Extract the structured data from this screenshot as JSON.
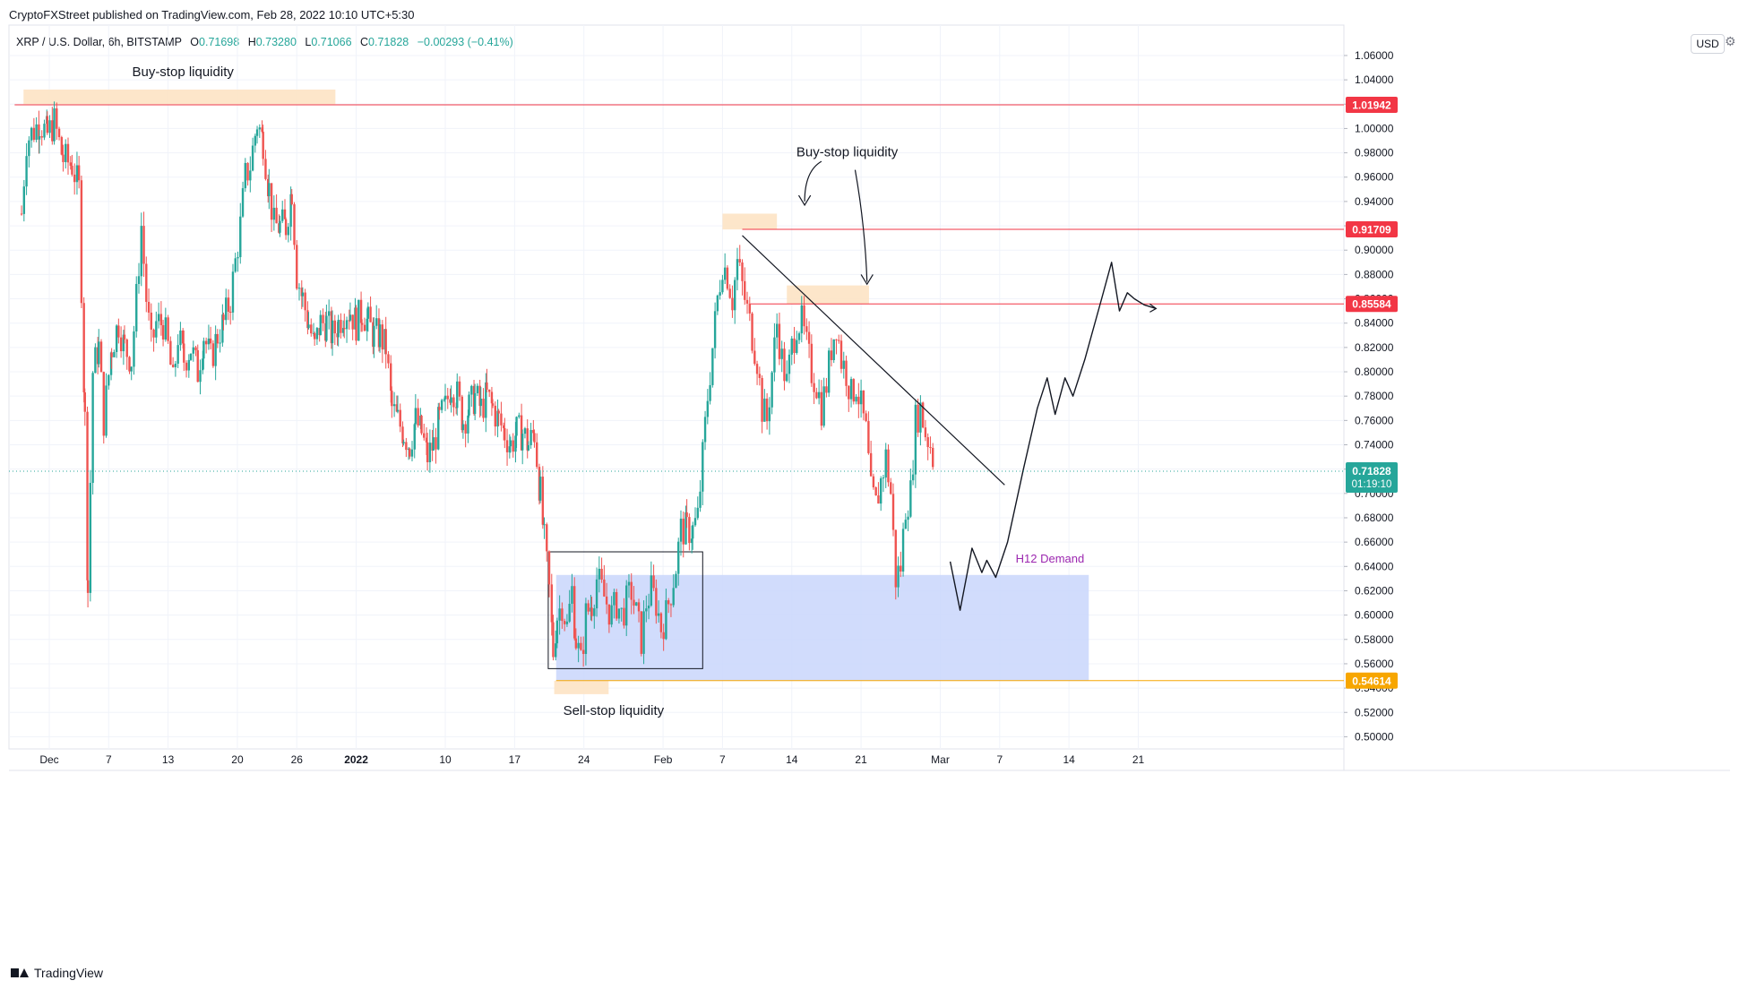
{
  "header": {
    "published": "CryptoFXStreet published on TradingView.com, Feb 28, 2022 10:10 UTC+5:30",
    "symbol": "XRP / U.S. Dollar, 6h, BITSTAMP",
    "open_label": "O",
    "open": "0.71698",
    "high_label": "H",
    "high": "0.73280",
    "low_label": "L",
    "low": "0.71066",
    "close_label": "C",
    "close": "0.71828",
    "change": "−0.00293 (−0.41%)",
    "currency": "USD"
  },
  "footer": {
    "brand": "TradingView"
  },
  "colors": {
    "up": "#26a69a",
    "down": "#ef5350",
    "liquidity_zone": "#fde3c4",
    "demand_zone": "#c9d6fb",
    "resistance": "#f23645",
    "support": "#f7a600",
    "demand_label": "#9c27b0"
  },
  "chart_data": {
    "type": "candlestick",
    "timeframe": "6h",
    "ylim": [
      0.49,
      1.085
    ],
    "y_ticks": [
      "1.06000",
      "1.04000",
      "1.02000",
      "1.00000",
      "0.98000",
      "0.96000",
      "0.94000",
      "0.92000",
      "0.90000",
      "0.88000",
      "0.86000",
      "0.84000",
      "0.82000",
      "0.80000",
      "0.78000",
      "0.76000",
      "0.74000",
      "0.72000",
      "0.70000",
      "0.68000",
      "0.66000",
      "0.64000",
      "0.62000",
      "0.60000",
      "0.58000",
      "0.56000",
      "0.54000",
      "0.52000",
      "0.50000"
    ],
    "y_tick_values": [
      1.06,
      1.04,
      1.02,
      1.0,
      0.98,
      0.96,
      0.94,
      0.92,
      0.9,
      0.88,
      0.86,
      0.84,
      0.82,
      0.8,
      0.78,
      0.76,
      0.74,
      0.72,
      0.7,
      0.68,
      0.66,
      0.64,
      0.62,
      0.6,
      0.58,
      0.56,
      0.54,
      0.52,
      0.5
    ],
    "x_labels": [
      {
        "day": 0,
        "label": "Dec"
      },
      {
        "day": 6,
        "label": "7"
      },
      {
        "day": 12,
        "label": "13"
      },
      {
        "day": 19,
        "label": "20"
      },
      {
        "day": 25,
        "label": "26"
      },
      {
        "day": 31,
        "label": "2022"
      },
      {
        "day": 40,
        "label": "10"
      },
      {
        "day": 47,
        "label": "17"
      },
      {
        "day": 54,
        "label": "24"
      },
      {
        "day": 62,
        "label": "Feb"
      },
      {
        "day": 68,
        "label": "7"
      },
      {
        "day": 75,
        "label": "14"
      },
      {
        "day": 82,
        "label": "21"
      },
      {
        "day": 90,
        "label": "Mar"
      },
      {
        "day": 96,
        "label": "7"
      },
      {
        "day": 103,
        "label": "14"
      },
      {
        "day": 110,
        "label": "21"
      }
    ],
    "price_path": [
      [
        -2.8,
        0.93
      ],
      [
        -2.3,
        0.99
      ],
      [
        -1.0,
        1.005
      ],
      [
        -0.2,
        0.995
      ],
      [
        0.5,
        1.005
      ],
      [
        1.4,
        0.975
      ],
      [
        2.3,
        0.97
      ],
      [
        3.0,
        0.95
      ],
      [
        3.6,
        0.76
      ],
      [
        3.9,
        0.62
      ],
      [
        4.4,
        0.8
      ],
      [
        5.0,
        0.82
      ],
      [
        5.5,
        0.76
      ],
      [
        6.3,
        0.82
      ],
      [
        7.0,
        0.84
      ],
      [
        7.6,
        0.82
      ],
      [
        8.3,
        0.81
      ],
      [
        8.8,
        0.86
      ],
      [
        9.3,
        0.92
      ],
      [
        9.8,
        0.86
      ],
      [
        10.3,
        0.82
      ],
      [
        10.8,
        0.84
      ],
      [
        11.5,
        0.84
      ],
      [
        12.0,
        0.82
      ],
      [
        12.5,
        0.79
      ],
      [
        13.0,
        0.83
      ],
      [
        13.6,
        0.81
      ],
      [
        14.3,
        0.82
      ],
      [
        15.0,
        0.8
      ],
      [
        15.6,
        0.83
      ],
      [
        16.3,
        0.81
      ],
      [
        17.0,
        0.83
      ],
      [
        17.6,
        0.84
      ],
      [
        18.3,
        0.86
      ],
      [
        18.8,
        0.89
      ],
      [
        19.3,
        0.92
      ],
      [
        19.8,
        0.96
      ],
      [
        20.3,
        0.97
      ],
      [
        21.0,
        1.005
      ],
      [
        21.6,
        0.99
      ],
      [
        22.2,
        0.95
      ],
      [
        22.7,
        0.92
      ],
      [
        23.3,
        0.92
      ],
      [
        23.9,
        0.92
      ],
      [
        24.5,
        0.95
      ],
      [
        25.0,
        0.88
      ],
      [
        25.6,
        0.86
      ],
      [
        26.2,
        0.84
      ],
      [
        26.8,
        0.82
      ],
      [
        27.4,
        0.84
      ],
      [
        28.0,
        0.84
      ],
      [
        28.6,
        0.83
      ],
      [
        29.2,
        0.84
      ],
      [
        29.8,
        0.85
      ],
      [
        30.4,
        0.85
      ],
      [
        31.0,
        0.84
      ],
      [
        31.6,
        0.85
      ],
      [
        32.2,
        0.84
      ],
      [
        32.8,
        0.83
      ],
      [
        33.4,
        0.83
      ],
      [
        34.0,
        0.82
      ],
      [
        34.6,
        0.77
      ],
      [
        35.2,
        0.76
      ],
      [
        35.8,
        0.75
      ],
      [
        36.4,
        0.74
      ],
      [
        37.0,
        0.76
      ],
      [
        37.6,
        0.75
      ],
      [
        38.2,
        0.73
      ],
      [
        38.8,
        0.74
      ],
      [
        39.4,
        0.76
      ],
      [
        40.0,
        0.77
      ],
      [
        40.6,
        0.79
      ],
      [
        41.2,
        0.78
      ],
      [
        41.8,
        0.76
      ],
      [
        42.4,
        0.77
      ],
      [
        43.0,
        0.78
      ],
      [
        43.6,
        0.77
      ],
      [
        44.2,
        0.78
      ],
      [
        44.8,
        0.77
      ],
      [
        45.4,
        0.76
      ],
      [
        46.0,
        0.75
      ],
      [
        46.6,
        0.74
      ],
      [
        47.2,
        0.75
      ],
      [
        47.8,
        0.75
      ],
      [
        48.4,
        0.74
      ],
      [
        49.0,
        0.75
      ],
      [
        49.6,
        0.7
      ],
      [
        50.0,
        0.66
      ],
      [
        50.5,
        0.62
      ],
      [
        50.9,
        0.57
      ],
      [
        51.3,
        0.6
      ],
      [
        51.8,
        0.61
      ],
      [
        52.3,
        0.59
      ],
      [
        52.8,
        0.62
      ],
      [
        53.2,
        0.58
      ],
      [
        53.7,
        0.56
      ],
      [
        54.2,
        0.6
      ],
      [
        54.8,
        0.61
      ],
      [
        55.3,
        0.63
      ],
      [
        55.8,
        0.62
      ],
      [
        56.3,
        0.61
      ],
      [
        56.8,
        0.6
      ],
      [
        57.3,
        0.61
      ],
      [
        57.8,
        0.6
      ],
      [
        58.3,
        0.61
      ],
      [
        58.8,
        0.62
      ],
      [
        59.3,
        0.6
      ],
      [
        59.8,
        0.58
      ],
      [
        60.3,
        0.61
      ],
      [
        60.8,
        0.62
      ],
      [
        61.3,
        0.61
      ],
      [
        61.8,
        0.59
      ],
      [
        62.3,
        0.6
      ],
      [
        62.8,
        0.62
      ],
      [
        63.3,
        0.64
      ],
      [
        63.8,
        0.67
      ],
      [
        64.4,
        0.67
      ],
      [
        65.0,
        0.67
      ],
      [
        65.5,
        0.68
      ],
      [
        66.0,
        0.73
      ],
      [
        66.5,
        0.78
      ],
      [
        67.0,
        0.82
      ],
      [
        67.5,
        0.86
      ],
      [
        68.0,
        0.89
      ],
      [
        68.5,
        0.88
      ],
      [
        69.0,
        0.86
      ],
      [
        69.5,
        0.89
      ],
      [
        70.0,
        0.87
      ],
      [
        70.5,
        0.85
      ],
      [
        71.0,
        0.83
      ],
      [
        71.5,
        0.81
      ],
      [
        72.0,
        0.77
      ],
      [
        72.5,
        0.76
      ],
      [
        73.0,
        0.8
      ],
      [
        73.5,
        0.84
      ],
      [
        74.0,
        0.81
      ],
      [
        74.5,
        0.79
      ],
      [
        75.0,
        0.82
      ],
      [
        75.5,
        0.84
      ],
      [
        76.0,
        0.84
      ],
      [
        76.5,
        0.82
      ],
      [
        77.0,
        0.8
      ],
      [
        77.5,
        0.79
      ],
      [
        78.0,
        0.77
      ],
      [
        78.5,
        0.79
      ],
      [
        79.0,
        0.82
      ],
      [
        79.5,
        0.84
      ],
      [
        80.0,
        0.81
      ],
      [
        80.5,
        0.8
      ],
      [
        81.0,
        0.78
      ],
      [
        81.5,
        0.79
      ],
      [
        82.0,
        0.77
      ],
      [
        82.5,
        0.75
      ],
      [
        83.0,
        0.7
      ],
      [
        83.5,
        0.69
      ],
      [
        84.0,
        0.71
      ],
      [
        84.5,
        0.73
      ],
      [
        85.0,
        0.7
      ],
      [
        85.5,
        0.63
      ],
      [
        86.0,
        0.64
      ],
      [
        86.5,
        0.69
      ],
      [
        87.0,
        0.7
      ],
      [
        87.5,
        0.76
      ],
      [
        88.0,
        0.77
      ],
      [
        88.5,
        0.75
      ],
      [
        89.0,
        0.74
      ],
      [
        89.5,
        0.72
      ]
    ],
    "last_price": {
      "label": "0.71828",
      "value": 0.71828,
      "countdown": "01:19:10"
    },
    "levels": [
      {
        "label": "1.01942",
        "value": 1.01942,
        "kind": "resistance"
      },
      {
        "label": "0.91709",
        "value": 0.91709,
        "kind": "resistance"
      },
      {
        "label": "0.85584",
        "value": 0.85584,
        "kind": "resistance"
      },
      {
        "label": "0.54614",
        "value": 0.54614,
        "kind": "support"
      }
    ],
    "zones": [
      {
        "name": "buy-stop-zone-1",
        "x0": -2.6,
        "x1": 28.9,
        "y0": 1.02,
        "y1": 1.032
      },
      {
        "name": "buy-stop-zone-2",
        "x0": 68.0,
        "x1": 73.5,
        "y0": 0.917,
        "y1": 0.93
      },
      {
        "name": "buy-stop-zone-3",
        "x0": 74.5,
        "x1": 82.8,
        "y0": 0.856,
        "y1": 0.871
      },
      {
        "name": "sell-stop-zone",
        "x0": 51.0,
        "x1": 56.5,
        "y0": 0.535,
        "y1": 0.546
      }
    ],
    "demand_zone": {
      "label": "H12 Demand",
      "x0": 51.2,
      "x1": 105.0,
      "y0": 0.546,
      "y1": 0.633
    },
    "consolidation_box": {
      "x0": 50.4,
      "x1": 66.0,
      "y0": 0.556,
      "y1": 0.652
    },
    "trendline": [
      [
        70.0,
        0.912
      ],
      [
        96.5,
        0.707
      ]
    ],
    "projection_path": [
      [
        91.0,
        0.644
      ],
      [
        92.0,
        0.604
      ],
      [
        93.2,
        0.655
      ],
      [
        94.2,
        0.635
      ],
      [
        94.7,
        0.645
      ],
      [
        95.6,
        0.631
      ],
      [
        96.8,
        0.66
      ],
      [
        98.4,
        0.72
      ],
      [
        99.8,
        0.77
      ],
      [
        100.8,
        0.795
      ],
      [
        101.6,
        0.765
      ],
      [
        102.6,
        0.795
      ],
      [
        103.4,
        0.78
      ],
      [
        104.6,
        0.81
      ],
      [
        106.3,
        0.86
      ],
      [
        107.3,
        0.89
      ],
      [
        108.1,
        0.85
      ],
      [
        108.9,
        0.865
      ],
      [
        109.6,
        0.86
      ],
      [
        110.6,
        0.855
      ],
      [
        111.8,
        0.852
      ]
    ],
    "annotations": [
      {
        "text": "Buy-stop liquidity",
        "x": 13.5,
        "y": 1.043
      },
      {
        "text": "Buy-stop liquidity",
        "x": 80.6,
        "y": 0.977
      },
      {
        "text": "Sell-stop liquidity",
        "x": 57.0,
        "y": 0.518
      }
    ]
  }
}
